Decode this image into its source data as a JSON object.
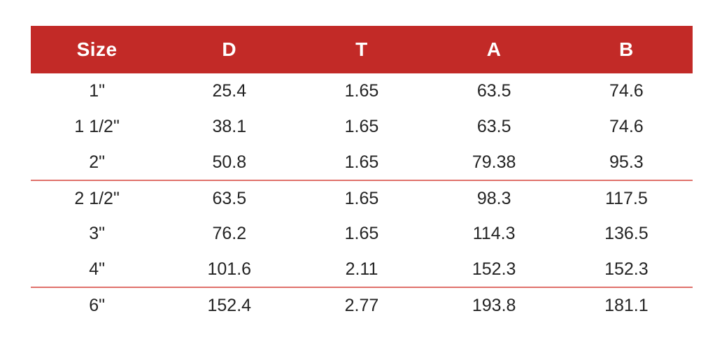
{
  "chart_data": {
    "type": "table",
    "columns": [
      "Size",
      "D",
      "T",
      "A",
      "B"
    ],
    "rows": [
      [
        "1\"",
        "25.4",
        "1.65",
        "63.5",
        "74.6"
      ],
      [
        "1 1/2\"",
        "38.1",
        "1.65",
        "63.5",
        "74.6"
      ],
      [
        "2\"",
        "50.8",
        "1.65",
        "79.38",
        "95.3"
      ],
      [
        "2 1/2\"",
        "63.5",
        "1.65",
        "98.3",
        "117.5"
      ],
      [
        "3\"",
        "76.2",
        "1.65",
        "114.3",
        "136.5"
      ],
      [
        "4\"",
        "101.6",
        "2.11",
        "152.3",
        "152.3"
      ],
      [
        "6\"",
        "152.4",
        "2.77",
        "193.8",
        "181.1"
      ]
    ],
    "divider_after_rows": [
      "2\"",
      "4\""
    ],
    "layout": "header row red band; centered cells; thin red divider lines after 3rd and 6th data rows; no outer border"
  },
  "colors": {
    "header_bg": "#c22a27",
    "header_text": "#ffffff",
    "divider": "#e0716b",
    "body_text": "#242424",
    "background": "#ffffff"
  }
}
